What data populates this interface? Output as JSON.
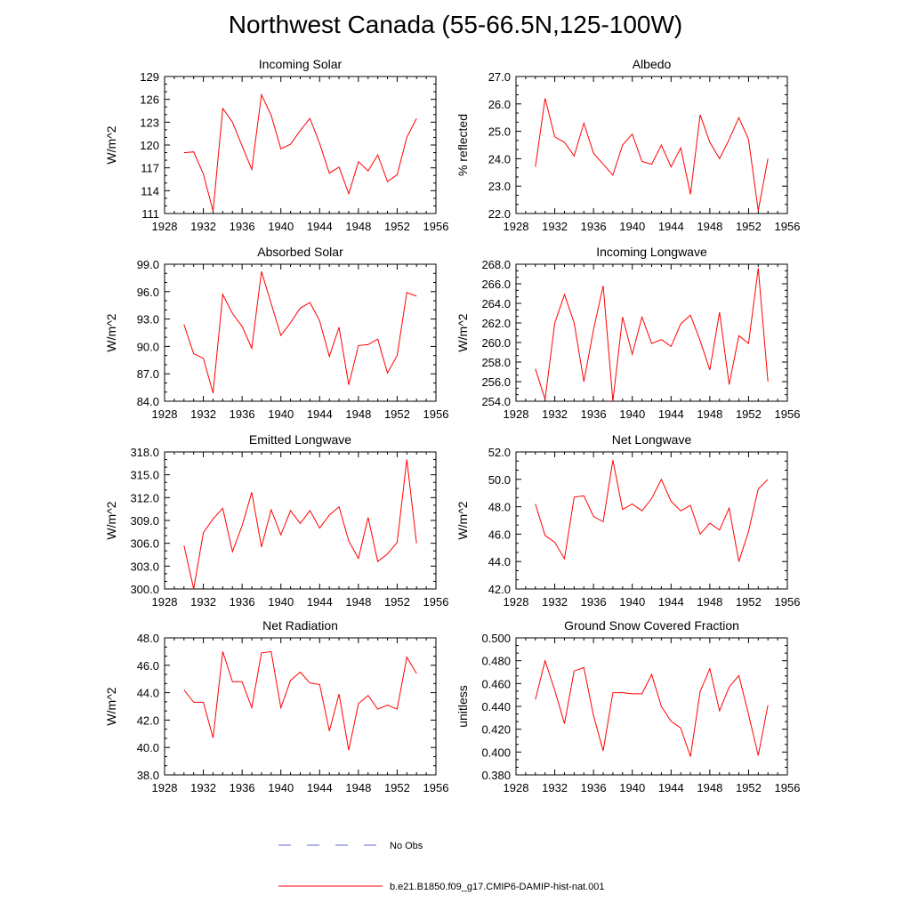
{
  "title": "Northwest Canada (55-66.5N,125-100W)",
  "legend": [
    {
      "label": "No Obs",
      "color": "#5a6ad0",
      "style": "dashed"
    },
    {
      "label": "b.e21.B1850.f09_g17.CMIP6-DAMIP-hist-nat.001",
      "color": "#ff0000",
      "style": "solid"
    }
  ],
  "chart_data": [
    {
      "type": "line",
      "title": "Incoming Solar",
      "ylabel": "W/m^2",
      "xlim": [
        1928,
        1956
      ],
      "xticks": [
        "1928",
        "1932",
        "1936",
        "1940",
        "1944",
        "1948",
        "1952",
        "1956"
      ],
      "ylim": [
        111,
        129
      ],
      "yticks": [
        "111",
        "114",
        "117",
        "120",
        "123",
        "126",
        "129"
      ],
      "x": [
        1930,
        1931,
        1932,
        1933,
        1934,
        1935,
        1936,
        1937,
        1938,
        1939,
        1940,
        1941,
        1942,
        1943,
        1944,
        1945,
        1946,
        1947,
        1948,
        1949,
        1950,
        1951,
        1952,
        1953,
        1954
      ],
      "series": [
        {
          "values": [
            119.0,
            119.1,
            116.2,
            111.3,
            124.8,
            123.0,
            119.9,
            116.8,
            126.6,
            123.9,
            119.5,
            120.1,
            121.9,
            123.5,
            120.2,
            116.3,
            117.1,
            113.6,
            117.8,
            116.6,
            118.7,
            115.2,
            116.1,
            121.0,
            123.5
          ],
          "color": "#ff0000"
        }
      ]
    },
    {
      "type": "line",
      "title": "Albedo",
      "ylabel": "% reflected",
      "xlim": [
        1928,
        1956
      ],
      "xticks": [
        "1928",
        "1932",
        "1936",
        "1940",
        "1944",
        "1948",
        "1952",
        "1956"
      ],
      "ylim": [
        22.0,
        27.0
      ],
      "yticks": [
        "22.0",
        "23.0",
        "24.0",
        "25.0",
        "26.0",
        "27.0"
      ],
      "x": [
        1930,
        1931,
        1932,
        1933,
        1934,
        1935,
        1936,
        1937,
        1938,
        1939,
        1940,
        1941,
        1942,
        1943,
        1944,
        1945,
        1946,
        1947,
        1948,
        1949,
        1950,
        1951,
        1952,
        1953,
        1954
      ],
      "series": [
        {
          "values": [
            23.7,
            26.2,
            24.8,
            24.6,
            24.1,
            25.3,
            24.2,
            23.8,
            23.4,
            24.5,
            24.9,
            23.9,
            23.8,
            24.5,
            23.7,
            24.4,
            22.7,
            25.6,
            24.6,
            24.0,
            24.7,
            25.5,
            24.7,
            22.1,
            24.0
          ],
          "color": "#ff0000"
        }
      ]
    },
    {
      "type": "line",
      "title": "Absorbed Solar",
      "ylabel": "W/m^2",
      "xlim": [
        1928,
        1956
      ],
      "xticks": [
        "1928",
        "1932",
        "1936",
        "1940",
        "1944",
        "1948",
        "1952",
        "1956"
      ],
      "ylim": [
        84.0,
        99.0
      ],
      "yticks": [
        "84.0",
        "87.0",
        "90.0",
        "93.0",
        "96.0",
        "99.0"
      ],
      "x": [
        1930,
        1931,
        1932,
        1933,
        1934,
        1935,
        1936,
        1937,
        1938,
        1939,
        1940,
        1941,
        1942,
        1943,
        1944,
        1945,
        1946,
        1947,
        1948,
        1949,
        1950,
        1951,
        1952,
        1953,
        1954
      ],
      "series": [
        {
          "values": [
            92.4,
            89.2,
            88.7,
            84.9,
            95.7,
            93.6,
            92.2,
            89.8,
            98.2,
            94.7,
            91.2,
            92.6,
            94.2,
            94.8,
            92.8,
            88.9,
            92.1,
            85.8,
            90.1,
            90.2,
            90.8,
            87.1,
            89.0,
            95.9,
            95.5
          ],
          "color": "#ff0000"
        }
      ]
    },
    {
      "type": "line",
      "title": "Incoming Longwave",
      "ylabel": "W/m^2",
      "xlim": [
        1928,
        1956
      ],
      "xticks": [
        "1928",
        "1932",
        "1936",
        "1940",
        "1944",
        "1948",
        "1952",
        "1956"
      ],
      "ylim": [
        254.0,
        268.0
      ],
      "yticks": [
        "254.0",
        "256.0",
        "258.0",
        "260.0",
        "262.0",
        "264.0",
        "266.0",
        "268.0"
      ],
      "x": [
        1930,
        1931,
        1932,
        1933,
        1934,
        1935,
        1936,
        1937,
        1938,
        1939,
        1940,
        1941,
        1942,
        1943,
        1944,
        1945,
        1946,
        1947,
        1948,
        1949,
        1950,
        1951,
        1952,
        1953,
        1954
      ],
      "series": [
        {
          "values": [
            257.3,
            254.2,
            262.0,
            264.9,
            262.0,
            256.0,
            261.3,
            265.8,
            254.0,
            262.6,
            258.8,
            262.6,
            259.9,
            260.3,
            259.6,
            261.9,
            262.8,
            260.2,
            257.2,
            263.1,
            255.7,
            260.7,
            259.9,
            267.6,
            256.0
          ],
          "color": "#ff0000"
        }
      ]
    },
    {
      "type": "line",
      "title": "Emitted Longwave",
      "ylabel": "W/m^2",
      "xlim": [
        1928,
        1956
      ],
      "xticks": [
        "1928",
        "1932",
        "1936",
        "1940",
        "1944",
        "1948",
        "1952",
        "1956"
      ],
      "ylim": [
        300.0,
        318.0
      ],
      "yticks": [
        "300.0",
        "303.0",
        "306.0",
        "309.0",
        "312.0",
        "315.0",
        "318.0"
      ],
      "x": [
        1930,
        1931,
        1932,
        1933,
        1934,
        1935,
        1936,
        1937,
        1938,
        1939,
        1940,
        1941,
        1942,
        1943,
        1944,
        1945,
        1946,
        1947,
        1948,
        1949,
        1950,
        1951,
        1952,
        1953,
        1954
      ],
      "series": [
        {
          "values": [
            305.7,
            300.0,
            307.4,
            309.2,
            310.6,
            304.9,
            308.3,
            312.7,
            305.5,
            310.4,
            307.1,
            310.3,
            308.6,
            310.3,
            308.0,
            309.7,
            310.8,
            306.3,
            304.0,
            309.4,
            303.6,
            304.6,
            306.1,
            317.0,
            306.0
          ],
          "color": "#ff0000"
        }
      ]
    },
    {
      "type": "line",
      "title": "Net Longwave",
      "ylabel": "W/m^2",
      "xlim": [
        1928,
        1956
      ],
      "xticks": [
        "1928",
        "1932",
        "1936",
        "1940",
        "1944",
        "1948",
        "1952",
        "1956"
      ],
      "ylim": [
        42.0,
        52.0
      ],
      "yticks": [
        "42.0",
        "44.0",
        "46.0",
        "48.0",
        "50.0",
        "52.0"
      ],
      "x": [
        1930,
        1931,
        1932,
        1933,
        1934,
        1935,
        1936,
        1937,
        1938,
        1939,
        1940,
        1941,
        1942,
        1943,
        1944,
        1945,
        1946,
        1947,
        1948,
        1949,
        1950,
        1951,
        1952,
        1953,
        1954
      ],
      "series": [
        {
          "values": [
            48.2,
            45.9,
            45.4,
            44.2,
            48.7,
            48.8,
            47.3,
            46.9,
            51.4,
            47.8,
            48.2,
            47.7,
            48.6,
            50.0,
            48.4,
            47.7,
            48.1,
            46.0,
            46.8,
            46.3,
            47.9,
            44.0,
            46.2,
            49.3,
            50.0
          ],
          "color": "#ff0000"
        }
      ]
    },
    {
      "type": "line",
      "title": "Net Radiation",
      "ylabel": "W/m^2",
      "xlim": [
        1928,
        1956
      ],
      "xticks": [
        "1928",
        "1932",
        "1936",
        "1940",
        "1944",
        "1948",
        "1952",
        "1956"
      ],
      "ylim": [
        38.0,
        48.0
      ],
      "yticks": [
        "38.0",
        "40.0",
        "42.0",
        "44.0",
        "46.0",
        "48.0"
      ],
      "x": [
        1930,
        1931,
        1932,
        1933,
        1934,
        1935,
        1936,
        1937,
        1938,
        1939,
        1940,
        1941,
        1942,
        1943,
        1944,
        1945,
        1946,
        1947,
        1948,
        1949,
        1950,
        1951,
        1952,
        1953,
        1954
      ],
      "series": [
        {
          "values": [
            44.2,
            43.3,
            43.3,
            40.7,
            47.0,
            44.8,
            44.8,
            42.9,
            46.9,
            47.0,
            42.9,
            44.9,
            45.5,
            44.7,
            44.6,
            41.2,
            43.9,
            39.8,
            43.2,
            43.8,
            42.8,
            43.1,
            42.8,
            46.6,
            45.4
          ],
          "color": "#ff0000"
        }
      ]
    },
    {
      "type": "line",
      "title": "Ground Snow Covered Fraction",
      "ylabel": "unitless",
      "xlim": [
        1928,
        1956
      ],
      "xticks": [
        "1928",
        "1932",
        "1936",
        "1940",
        "1944",
        "1948",
        "1952",
        "1956"
      ],
      "ylim": [
        0.38,
        0.5
      ],
      "yticks": [
        "0.380",
        "0.400",
        "0.420",
        "0.440",
        "0.460",
        "0.480",
        "0.500"
      ],
      "x": [
        1930,
        1931,
        1932,
        1933,
        1934,
        1935,
        1936,
        1937,
        1938,
        1939,
        1940,
        1941,
        1942,
        1943,
        1944,
        1945,
        1946,
        1947,
        1948,
        1949,
        1950,
        1951,
        1952,
        1953,
        1954
      ],
      "series": [
        {
          "values": [
            0.446,
            0.48,
            0.454,
            0.425,
            0.471,
            0.474,
            0.432,
            0.401,
            0.452,
            0.452,
            0.451,
            0.451,
            0.468,
            0.44,
            0.427,
            0.421,
            0.396,
            0.453,
            0.473,
            0.436,
            0.457,
            0.467,
            0.433,
            0.397,
            0.441
          ],
          "color": "#ff0000"
        }
      ]
    }
  ]
}
